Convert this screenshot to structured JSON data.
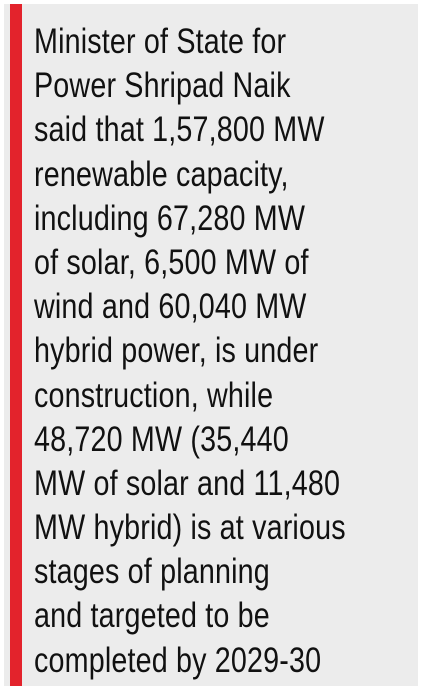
{
  "text_block": {
    "lines": [
      "Minister of State for",
      "Power Shripad Naik",
      "said that 1,57,800 MW",
      "renewable capacity,",
      "including 67,280 MW",
      "of solar, 6,500 MW of",
      "wind and 60,040 MW",
      "hybrid power, is under",
      "construction, while",
      "48,720 MW (35,440",
      "MW of solar and 11,480",
      "MW hybrid) is at various",
      "stages of planning",
      "and targeted to be",
      "completed by 2029-30"
    ]
  }
}
